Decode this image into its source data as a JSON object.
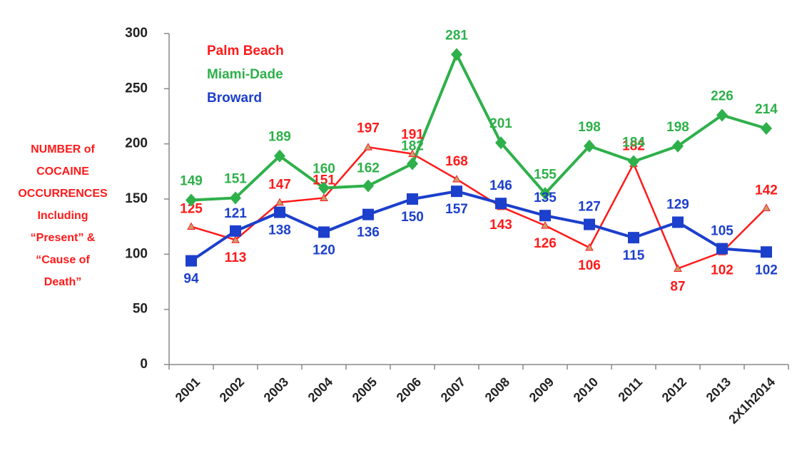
{
  "chart_data": {
    "type": "line",
    "ylabel": [
      "NUMBER of",
      "COCAINE",
      "OCCURRENCES",
      "Including",
      "“Present”  &",
      "“Cause of",
      "Death”"
    ],
    "categories": [
      "2001",
      "2002",
      "2003",
      "2004",
      "2005",
      "2006",
      "2007",
      "2008",
      "2009",
      "2010",
      "2011",
      "2012",
      "2013",
      "2X1h2014"
    ],
    "series": [
      {
        "name": "Palm Beach",
        "color": "#ff1a1a",
        "marker": "triangle",
        "values": [
          125,
          113,
          147,
          151,
          197,
          191,
          168,
          143,
          126,
          106,
          182,
          87,
          102,
          142
        ]
      },
      {
        "name": "Miami-Dade",
        "color": "#2eb04a",
        "marker": "diamond",
        "values": [
          149,
          151,
          189,
          160,
          162,
          182,
          281,
          201,
          155,
          198,
          184,
          198,
          226,
          214
        ]
      },
      {
        "name": "Broward",
        "color": "#1c3fcc",
        "marker": "square",
        "values": [
          94,
          121,
          138,
          120,
          136,
          150,
          157,
          146,
          135,
          127,
          115,
          129,
          105,
          102
        ]
      }
    ],
    "ylim": [
      0,
      300
    ],
    "yticks": [
      0,
      50,
      100,
      150,
      200,
      250,
      300
    ],
    "grid": false,
    "legend": "upper left"
  }
}
